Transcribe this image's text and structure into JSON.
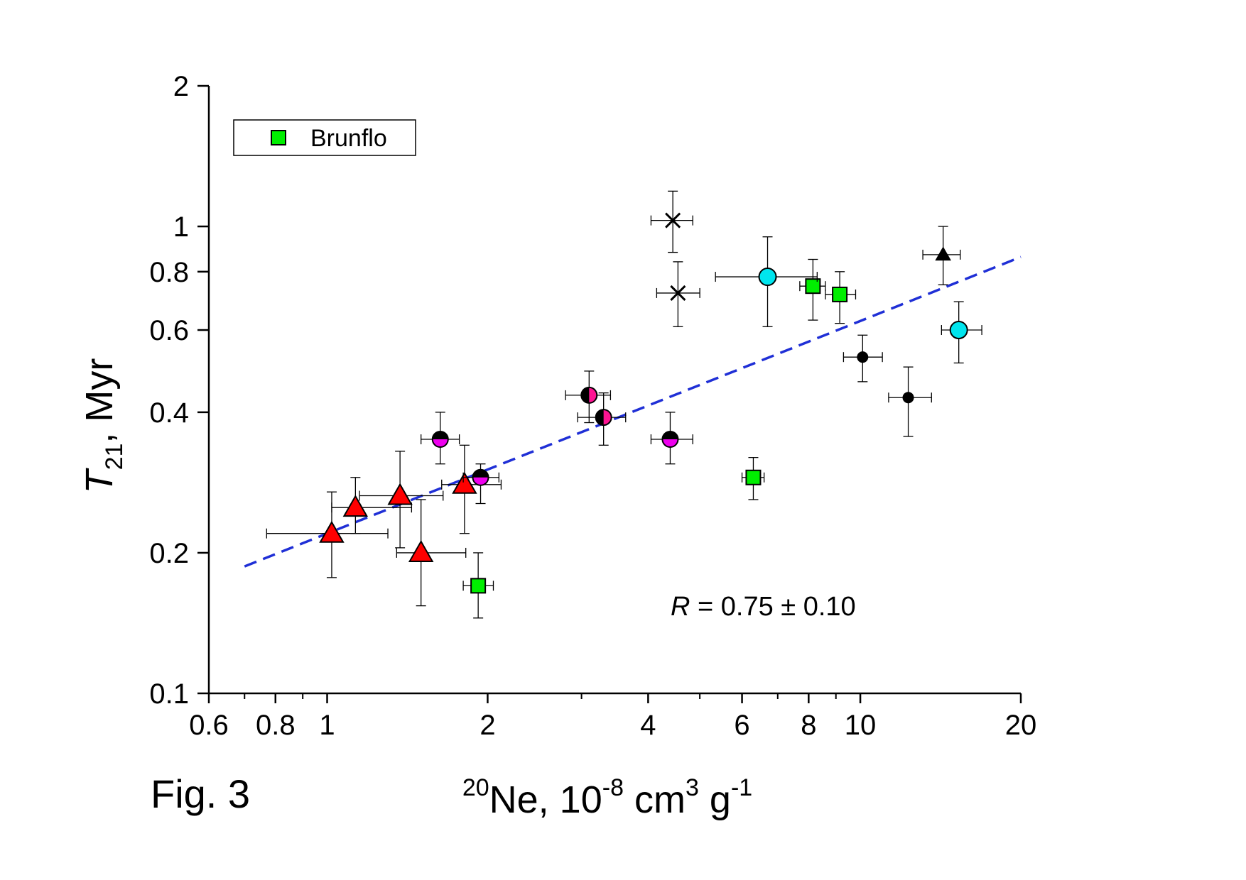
{
  "figure_label": "Fig. 3",
  "annotation": {
    "var": "R",
    "text": " = 0.75 ± 0.10"
  },
  "legend": [
    {
      "label": "Brunflo",
      "marker": "square",
      "color": "#00ee00"
    }
  ],
  "chart_data": {
    "type": "scatter",
    "xscale": "log",
    "yscale": "log",
    "xlim": [
      0.6,
      20
    ],
    "ylim": [
      0.1,
      2
    ],
    "xticks": [
      {
        "v": 0.6,
        "label": "0.6"
      },
      {
        "v": 0.8,
        "label": "0.8"
      },
      {
        "v": 1,
        "label": "1"
      },
      {
        "v": 2,
        "label": "2"
      },
      {
        "v": 4,
        "label": "4"
      },
      {
        "v": 6,
        "label": "6"
      },
      {
        "v": 8,
        "label": "8"
      },
      {
        "v": 10,
        "label": "10"
      },
      {
        "v": 20,
        "label": "20"
      }
    ],
    "xminor": [
      0.7,
      0.9,
      3,
      5,
      7,
      9
    ],
    "yticks": [
      {
        "v": 0.1,
        "label": "0.1"
      },
      {
        "v": 0.2,
        "label": "0.2"
      },
      {
        "v": 0.4,
        "label": "0.4"
      },
      {
        "v": 0.6,
        "label": "0.6"
      },
      {
        "v": 0.8,
        "label": "0.8"
      },
      {
        "v": 1,
        "label": "1"
      },
      {
        "v": 2,
        "label": "2"
      }
    ],
    "xlabel": {
      "sup1": "20",
      "main": "Ne, 10",
      "sup2": "-8",
      "mid": " cm",
      "sup3": "3",
      "end": " g",
      "sup4": "-1"
    },
    "ylabel": {
      "var": "T",
      "sub": "21",
      "rest": ", Myr"
    },
    "fit": {
      "x": [
        0.7,
        20
      ],
      "y": [
        0.187,
        0.86
      ],
      "color": "#1f2fd6",
      "style": "dashed"
    },
    "colors": {
      "red": "#ff0000",
      "green": "#00ee00",
      "cyan": "#00e5ee",
      "magenta": "#ee00ee",
      "pink": "#ff1493",
      "black": "#000000",
      "fit": "#1f2fd6"
    },
    "series": [
      {
        "marker": "triangle",
        "color": "#ff0000",
        "points": [
          {
            "x": 1.02,
            "y": 0.22,
            "xerr": [
              0.77,
              1.3
            ],
            "yerr": [
              0.177,
              0.27
            ]
          },
          {
            "x": 1.13,
            "y": 0.25,
            "xerr": [
              1.02,
              1.44
            ],
            "yerr": [
              0.22,
              0.29
            ]
          },
          {
            "x": 1.37,
            "y": 0.265,
            "xerr": [
              1.15,
              1.65
            ],
            "yerr": [
              0.205,
              0.33
            ]
          },
          {
            "x": 1.5,
            "y": 0.2,
            "xerr": [
              1.35,
              1.82
            ],
            "yerr": [
              0.154,
              0.26
            ]
          },
          {
            "x": 1.81,
            "y": 0.28,
            "xerr": [
              1.64,
              2.12
            ],
            "yerr": [
              0.22,
              0.34
            ]
          }
        ]
      },
      {
        "marker": "square",
        "color": "#00ee00",
        "points": [
          {
            "x": 1.92,
            "y": 0.17,
            "xerr": [
              1.8,
              2.05
            ],
            "yerr": [
              0.145,
              0.2
            ]
          },
          {
            "x": 6.3,
            "y": 0.29,
            "xerr": [
              6.0,
              6.6
            ],
            "yerr": [
              0.26,
              0.32
            ]
          },
          {
            "x": 8.15,
            "y": 0.745,
            "xerr": [
              7.7,
              8.6
            ],
            "yerr": [
              0.63,
              0.85
            ]
          },
          {
            "x": 9.15,
            "y": 0.715,
            "xerr": [
              8.6,
              9.8
            ],
            "yerr": [
              0.62,
              0.8
            ]
          }
        ]
      },
      {
        "marker": "circle",
        "color": "#00e5ee",
        "points": [
          {
            "x": 6.7,
            "y": 0.78,
            "xerr": [
              5.35,
              8.3
            ],
            "yerr": [
              0.61,
              0.95
            ]
          },
          {
            "x": 15.3,
            "y": 0.6,
            "xerr": [
              14.2,
              16.9
            ],
            "yerr": [
              0.51,
              0.69
            ]
          }
        ]
      },
      {
        "marker": "half-circle-top-black",
        "color": "#ee00ee",
        "points": [
          {
            "x": 1.63,
            "y": 0.35,
            "xerr": [
              1.5,
              1.77
            ],
            "yerr": [
              0.31,
              0.4
            ]
          },
          {
            "x": 1.94,
            "y": 0.29,
            "xerr": [
              1.8,
              2.1
            ],
            "yerr": [
              0.255,
              0.31
            ]
          },
          {
            "x": 4.4,
            "y": 0.35,
            "xerr": [
              4.05,
              4.85
            ],
            "yerr": [
              0.31,
              0.4
            ]
          }
        ]
      },
      {
        "marker": "half-circle-left-black",
        "color": "#ff1493",
        "points": [
          {
            "x": 3.1,
            "y": 0.435,
            "xerr": [
              2.8,
              3.4
            ],
            "yerr": [
              0.38,
              0.49
            ]
          },
          {
            "x": 3.3,
            "y": 0.39,
            "xerr": [
              2.95,
              3.63
            ],
            "yerr": [
              0.34,
              0.44
            ]
          }
        ]
      },
      {
        "marker": "dot",
        "color": "#000000",
        "points": [
          {
            "x": 10.1,
            "y": 0.525,
            "xerr": [
              9.3,
              11.0
            ],
            "yerr": [
              0.465,
              0.585
            ]
          },
          {
            "x": 12.3,
            "y": 0.43,
            "xerr": [
              11.3,
              13.6
            ],
            "yerr": [
              0.355,
              0.5
            ]
          }
        ]
      },
      {
        "marker": "triangle-small",
        "color": "#000000",
        "points": [
          {
            "x": 14.3,
            "y": 0.87,
            "xerr": [
              13.1,
              15.4
            ],
            "yerr": [
              0.75,
              1.0
            ]
          }
        ]
      },
      {
        "marker": "cross",
        "color": "#000000",
        "points": [
          {
            "x": 4.45,
            "y": 1.03,
            "xerr": [
              4.05,
              4.85
            ],
            "yerr": [
              0.88,
              1.19
            ]
          },
          {
            "x": 4.55,
            "y": 0.72,
            "xerr": [
              4.15,
              5.0
            ],
            "yerr": [
              0.61,
              0.84
            ]
          }
        ]
      }
    ]
  }
}
